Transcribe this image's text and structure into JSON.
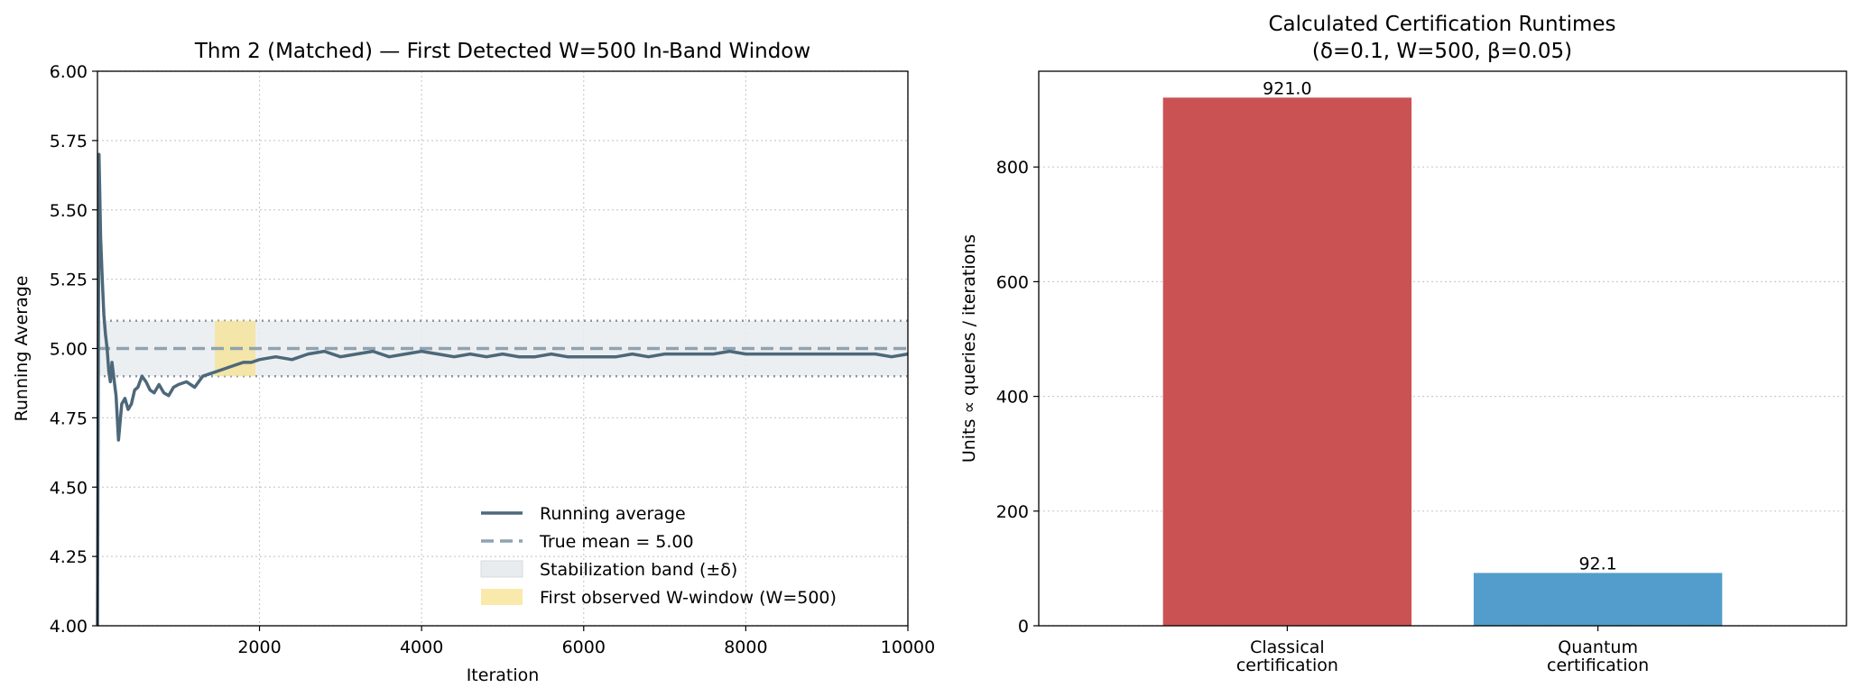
{
  "chart_data": [
    {
      "type": "line",
      "title": "Thm 2 (Matched) — First Detected W=500 In-Band Window",
      "xlabel": "Iteration",
      "ylabel": "Running Average",
      "xlim": [
        1,
        10000
      ],
      "ylim": [
        4.0,
        6.0
      ],
      "xticks": [
        2000,
        4000,
        6000,
        8000,
        10000
      ],
      "xtick_labels": [
        "2000",
        "4000",
        "6000",
        "8000",
        "10000"
      ],
      "yticks": [
        4.0,
        4.25,
        4.5,
        4.75,
        5.0,
        5.25,
        5.5,
        5.75,
        6.0
      ],
      "ytick_labels": [
        "4.00",
        "4.25",
        "4.50",
        "4.75",
        "5.00",
        "5.25",
        "5.50",
        "5.75",
        "6.00"
      ],
      "grid": true,
      "legend_position": "lower-right",
      "true_mean": 5.0,
      "band": [
        4.9,
        5.1
      ],
      "window": [
        1450,
        1950
      ],
      "series": [
        {
          "name": "Running average",
          "color": "#4d6879",
          "x": [
            1,
            20,
            40,
            60,
            80,
            100,
            120,
            140,
            160,
            180,
            200,
            230,
            260,
            300,
            340,
            380,
            420,
            460,
            500,
            550,
            600,
            650,
            700,
            760,
            820,
            880,
            940,
            1000,
            1100,
            1200,
            1300,
            1400,
            1500,
            1600,
            1700,
            1800,
            1900,
            2000,
            2200,
            2400,
            2600,
            2800,
            3000,
            3200,
            3400,
            3600,
            3800,
            4000,
            4200,
            4400,
            4600,
            4800,
            5000,
            5200,
            5400,
            5600,
            5800,
            6000,
            6200,
            6400,
            6600,
            6800,
            7000,
            7200,
            7400,
            7600,
            7800,
            8000,
            8200,
            8400,
            8600,
            8800,
            9000,
            9200,
            9400,
            9600,
            9800,
            10000
          ],
          "y": [
            4.0,
            5.7,
            5.4,
            5.25,
            5.12,
            5.05,
            5.0,
            4.92,
            4.88,
            4.95,
            4.9,
            4.83,
            4.67,
            4.8,
            4.82,
            4.78,
            4.8,
            4.85,
            4.86,
            4.9,
            4.88,
            4.85,
            4.84,
            4.87,
            4.84,
            4.83,
            4.86,
            4.87,
            4.88,
            4.86,
            4.9,
            4.91,
            4.92,
            4.93,
            4.94,
            4.95,
            4.95,
            4.96,
            4.97,
            4.96,
            4.98,
            4.99,
            4.97,
            4.98,
            4.99,
            4.97,
            4.98,
            4.99,
            4.98,
            4.97,
            4.98,
            4.97,
            4.98,
            4.97,
            4.97,
            4.98,
            4.97,
            4.97,
            4.97,
            4.97,
            4.98,
            4.97,
            4.98,
            4.98,
            4.98,
            4.98,
            4.99,
            4.98,
            4.98,
            4.98,
            4.98,
            4.98,
            4.98,
            4.98,
            4.98,
            4.98,
            4.97,
            4.98
          ]
        },
        {
          "name": "True mean = 5.00",
          "color": "#8fa3b0"
        },
        {
          "name": "Stabilization band (±δ)",
          "color": "#d9dde1"
        },
        {
          "name": "First observed W-window (W=500)",
          "color": "#f7e28f"
        }
      ]
    },
    {
      "type": "bar",
      "title": "Calculated Certification Runtimes",
      "subtitle": "(δ=0.1, W=500, β=0.05)",
      "xlabel": "",
      "ylabel": "Units ∝ queries / iterations",
      "categories": [
        [
          "Classical",
          "certification"
        ],
        [
          "Quantum",
          "certification"
        ]
      ],
      "values": [
        921.0,
        92.1
      ],
      "value_labels": [
        "921.0",
        "92.1"
      ],
      "colors": [
        "#c84c4d",
        "#4c9ac9"
      ],
      "ylim": [
        0,
        967
      ],
      "yticks": [
        0,
        200,
        400,
        600,
        800
      ],
      "ytick_labels": [
        "0",
        "200",
        "400",
        "600",
        "800"
      ],
      "grid": true
    }
  ]
}
